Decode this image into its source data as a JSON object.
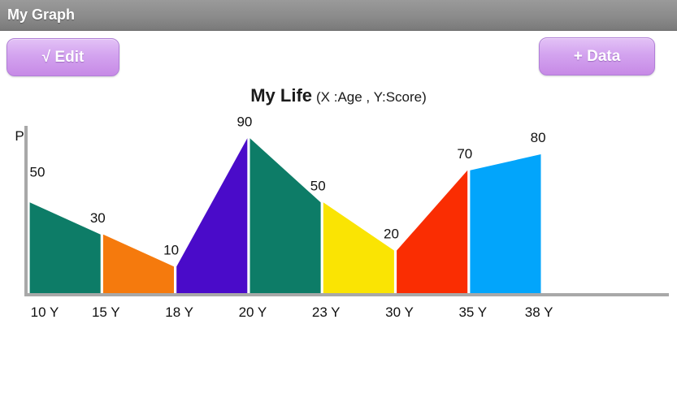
{
  "app": {
    "title": "My Graph"
  },
  "toolbar": {
    "edit_label": "√ Edit",
    "data_label": "+ Data"
  },
  "chart_data": {
    "type": "area",
    "title": "My Life",
    "subtitle": "(X :Age , Y:Score)",
    "x_axis_name": "Age",
    "y_axis_name": "Score",
    "y_axis_label": "P",
    "categories": [
      "10 Y",
      "15 Y",
      "18 Y",
      "20 Y",
      "23 Y",
      "30 Y",
      "35 Y",
      "38 Y"
    ],
    "x": [
      10,
      15,
      18,
      20,
      23,
      30,
      35,
      38
    ],
    "values": [
      50,
      30,
      10,
      90,
      50,
      20,
      70,
      80
    ],
    "segment_colors": [
      "#0D7C67",
      "#F57A0D",
      "#4A0BC9",
      "#0D7C67",
      "#FAE403",
      "#FA2D02",
      "#02A5FB"
    ],
    "axis_color": "#A8A8A8",
    "label_color": "#111111",
    "ylim": [
      0,
      100
    ],
    "grid": false,
    "legend": false
  },
  "colors": {
    "titlebar_text": "#FFFFFF",
    "button_fill": "#CD97EA",
    "button_text": "#FFFFFF"
  }
}
